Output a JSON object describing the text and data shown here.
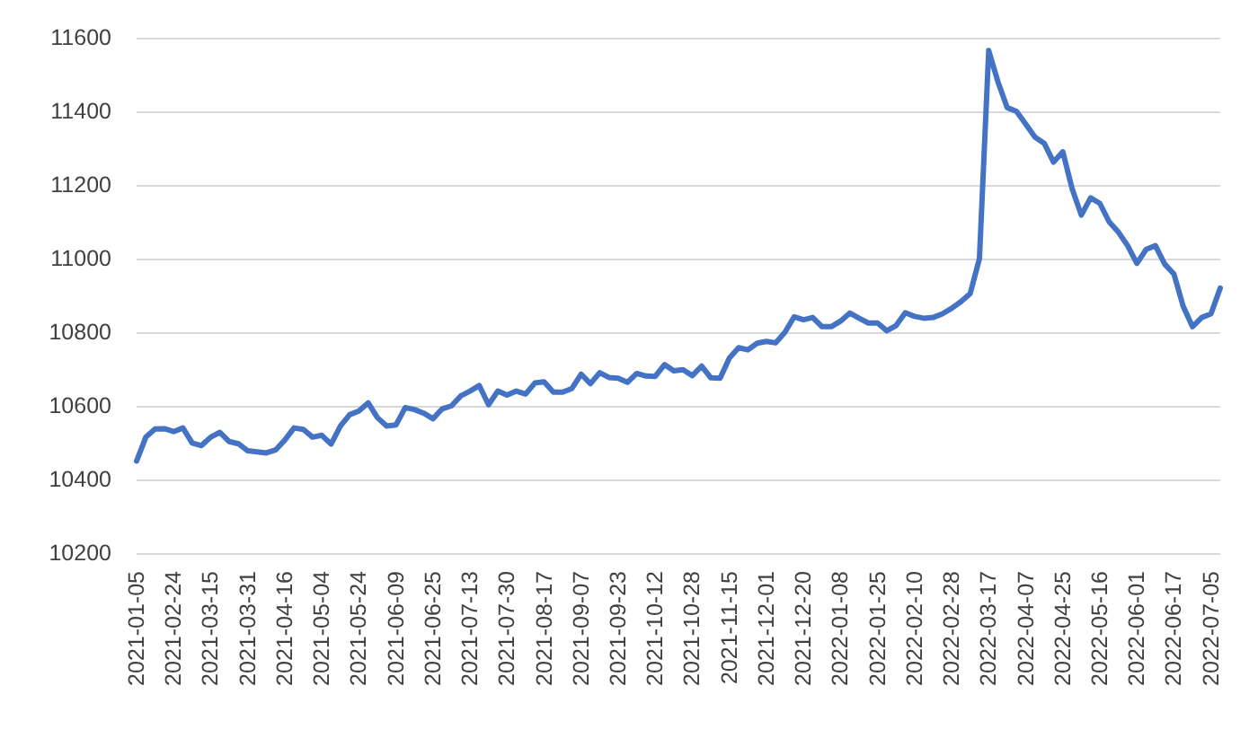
{
  "chart_data": {
    "type": "line",
    "categories": [
      "2021-01-05",
      null,
      null,
      null,
      "2021-02-24",
      null,
      null,
      null,
      "2021-03-15",
      null,
      null,
      null,
      "2021-03-31",
      null,
      null,
      null,
      "2021-04-16",
      null,
      null,
      null,
      "2021-05-04",
      null,
      null,
      null,
      "2021-05-24",
      null,
      null,
      null,
      "2021-06-09",
      null,
      null,
      null,
      "2021-06-25",
      null,
      null,
      null,
      "2021-07-13",
      null,
      null,
      null,
      "2021-07-30",
      null,
      null,
      null,
      "2021-08-17",
      null,
      null,
      null,
      "2021-09-07",
      null,
      null,
      null,
      "2021-09-23",
      null,
      null,
      null,
      "2021-10-12",
      null,
      null,
      null,
      "2021-10-28",
      null,
      null,
      null,
      "2021-11-15",
      null,
      null,
      null,
      "2021-12-01",
      null,
      null,
      null,
      "2021-12-20",
      null,
      null,
      null,
      "2022-01-08",
      null,
      null,
      null,
      "2022-01-25",
      null,
      null,
      null,
      "2022-02-10",
      null,
      null,
      null,
      "2022-02-28",
      null,
      null,
      null,
      "2022-03-17",
      null,
      null,
      null,
      "2022-04-07",
      null,
      null,
      null,
      "2022-04-25",
      null,
      null,
      null,
      "2022-05-16",
      null,
      null,
      null,
      "2022-06-01",
      null,
      null,
      null,
      "2022-06-17",
      null,
      null,
      null,
      "2022-07-05",
      null
    ],
    "values": [
      10450,
      10515,
      10537,
      10538,
      10530,
      10540,
      10499,
      10492,
      10515,
      10528,
      10503,
      10497,
      10478,
      10475,
      10472,
      10480,
      10507,
      10540,
      10536,
      10515,
      10520,
      10496,
      10545,
      10576,
      10586,
      10608,
      10568,
      10545,
      10548,
      10595,
      10590,
      10580,
      10565,
      10592,
      10600,
      10627,
      10640,
      10655,
      10603,
      10640,
      10629,
      10640,
      10632,
      10662,
      10665,
      10637,
      10637,
      10647,
      10686,
      10660,
      10690,
      10677,
      10675,
      10664,
      10688,
      10681,
      10680,
      10712,
      10695,
      10698,
      10682,
      10708,
      10676,
      10675,
      10730,
      10758,
      10752,
      10770,
      10775,
      10771,
      10800,
      10842,
      10834,
      10840,
      10815,
      10815,
      10830,
      10852,
      10838,
      10825,
      10825,
      10804,
      10818,
      10853,
      10843,
      10838,
      10840,
      10850,
      10865,
      10883,
      10905,
      11000,
      11565,
      11480,
      11410,
      11400,
      11365,
      11330,
      11313,
      11262,
      11290,
      11190,
      11118,
      11165,
      11150,
      11100,
      11072,
      11035,
      10987,
      11025,
      11035,
      10985,
      10958,
      10870,
      10815,
      10840,
      10850,
      10920
    ],
    "color": "#4472c4",
    "ylim": [
      10200,
      11600
    ],
    "yticks": [
      10200,
      10400,
      10600,
      10800,
      11000,
      11200,
      11400,
      11600
    ],
    "grid": "y",
    "marker": "none",
    "line_style": "solid"
  }
}
